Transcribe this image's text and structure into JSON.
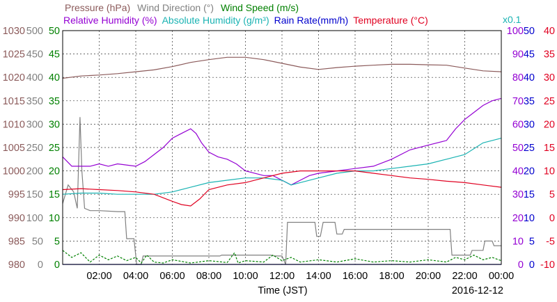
{
  "colors": {
    "pressure": "#8b5a5a",
    "wind_direction": "#808080",
    "wind_speed": "#008000",
    "relative_humidity": "#9400d3",
    "absolute_humidity": "#1ab3b3",
    "rain_rate": "#0000cd",
    "temperature": "#e00020"
  },
  "chart_data": {
    "type": "line",
    "title_row1": [
      {
        "key": "pressure",
        "text": "Pressure (hPa)"
      },
      {
        "key": "wind_direction",
        "text": "Wind Direction (°)"
      },
      {
        "key": "wind_speed",
        "text": "Wind Speed (m/s)"
      }
    ],
    "title_row2": [
      {
        "key": "relative_humidity",
        "text": "Relative Humidity (%)"
      },
      {
        "key": "absolute_humidity",
        "text": "Absolute Humidity (g/m³)"
      },
      {
        "key": "rain_rate",
        "text": "Rain Rate(mm/h)"
      },
      {
        "key": "temperature",
        "text": "Temperature (°C)"
      }
    ],
    "abs_humidity_scale_note": "x0.1",
    "xlabel": "Time (JST)",
    "date": "2016-12-12",
    "x_range_hours": [
      0,
      24
    ],
    "x_ticks": [
      "02:00",
      "04:00",
      "06:00",
      "08:00",
      "10:00",
      "12:00",
      "14:00",
      "16:00",
      "18:00",
      "20:00",
      "22:00",
      "00:00"
    ],
    "grid": true,
    "axes": {
      "pressure": {
        "range": [
          980,
          1030
        ],
        "ticks": [
          "1030",
          "1025",
          "1020",
          "1015",
          "1010",
          "1005",
          "1000",
          "995",
          "990",
          "985",
          "980"
        ]
      },
      "wind_direction": {
        "range": [
          0,
          500
        ],
        "ticks": [
          "500",
          "450",
          "400",
          "350",
          "300",
          "250",
          "200",
          "150",
          "100",
          "50",
          "0"
        ]
      },
      "wind_speed": {
        "range": [
          0,
          50
        ],
        "ticks": [
          "50",
          "45",
          "40",
          "35",
          "30",
          "25",
          "20",
          "15",
          "10",
          "5",
          "0"
        ]
      },
      "relative_humidity": {
        "range": [
          0,
          100
        ],
        "ticks": [
          "100",
          "90",
          "80",
          "70",
          "60",
          "50",
          "40",
          "30",
          "20",
          "10",
          "0"
        ]
      },
      "rain_rate": {
        "range": [
          0,
          50
        ],
        "ticks": [
          "50",
          "45",
          "40",
          "35",
          "30",
          "25",
          "20",
          "15",
          "10",
          "5",
          "0"
        ]
      },
      "temperature": {
        "range": [
          -10,
          40
        ],
        "ticks": [
          "40",
          "35",
          "30",
          "25",
          "20",
          "15",
          "10",
          "5",
          "0",
          "-5",
          "-10"
        ]
      }
    },
    "series": [
      {
        "key": "pressure",
        "axis": "pressure",
        "points": [
          [
            0,
            1019.8
          ],
          [
            1,
            1020.3
          ],
          [
            2,
            1020.5
          ],
          [
            3,
            1020.8
          ],
          [
            4,
            1021.2
          ],
          [
            5,
            1021.6
          ],
          [
            6,
            1022.3
          ],
          [
            7,
            1023.2
          ],
          [
            8,
            1023.8
          ],
          [
            9,
            1024.3
          ],
          [
            10,
            1024.3
          ],
          [
            11,
            1023.8
          ],
          [
            12,
            1023.0
          ],
          [
            13,
            1022.2
          ],
          [
            14,
            1021.7
          ],
          [
            15,
            1022.1
          ],
          [
            16,
            1022.4
          ],
          [
            17,
            1022.6
          ],
          [
            18,
            1022.8
          ],
          [
            19,
            1022.8
          ],
          [
            20,
            1022.7
          ],
          [
            21,
            1022.6
          ],
          [
            22,
            1022.0
          ],
          [
            23,
            1021.4
          ],
          [
            24,
            1021.2
          ]
        ]
      },
      {
        "key": "wind_direction",
        "axis": "wind_direction",
        "points": [
          [
            0,
            130
          ],
          [
            0.3,
            170
          ],
          [
            0.6,
            155
          ],
          [
            0.8,
            120
          ],
          [
            0.95,
            315
          ],
          [
            1.05,
            200
          ],
          [
            1.2,
            120
          ],
          [
            1.5,
            115
          ],
          [
            2,
            115
          ],
          [
            3,
            113
          ],
          [
            3.4,
            113
          ],
          [
            3.5,
            55
          ],
          [
            3.9,
            55
          ],
          [
            4.05,
            0
          ],
          [
            4.3,
            0
          ],
          [
            4.4,
            18
          ],
          [
            8.6,
            18
          ],
          [
            8.7,
            20
          ],
          [
            11.4,
            20
          ],
          [
            11.6,
            18
          ],
          [
            12,
            18
          ],
          [
            12.2,
            0
          ],
          [
            12.3,
            90
          ],
          [
            12.5,
            90
          ],
          [
            13.8,
            90
          ],
          [
            13.9,
            60
          ],
          [
            14.1,
            60
          ],
          [
            14.25,
            90
          ],
          [
            14.9,
            90
          ],
          [
            15,
            65
          ],
          [
            15.3,
            65
          ],
          [
            15.4,
            75
          ],
          [
            21.2,
            75
          ],
          [
            21.3,
            20
          ],
          [
            22.3,
            20
          ],
          [
            22.4,
            30
          ],
          [
            23,
            30
          ],
          [
            23.1,
            50
          ],
          [
            23.5,
            50
          ],
          [
            23.6,
            40
          ],
          [
            24,
            40
          ]
        ]
      },
      {
        "key": "wind_speed",
        "axis": "wind_speed",
        "points": [
          [
            0,
            3
          ],
          [
            0.5,
            1.5
          ],
          [
            1,
            2.5
          ],
          [
            1.5,
            0.5
          ],
          [
            2,
            2
          ],
          [
            2.5,
            1
          ],
          [
            3,
            1.8
          ],
          [
            3.5,
            0.8
          ],
          [
            4,
            1.5
          ],
          [
            4.3,
            0.3
          ],
          [
            4.6,
            2
          ],
          [
            5,
            0.5
          ],
          [
            5.5,
            0.3
          ],
          [
            6,
            1
          ],
          [
            7,
            0.3
          ],
          [
            8,
            0.8
          ],
          [
            9,
            0.4
          ],
          [
            9.4,
            2.5
          ],
          [
            9.6,
            0.3
          ],
          [
            10,
            0.8
          ],
          [
            11,
            0.5
          ],
          [
            11.5,
            2
          ],
          [
            12,
            0.8
          ],
          [
            12.5,
            1.5
          ],
          [
            13,
            0.5
          ],
          [
            14,
            1
          ],
          [
            15,
            0.5
          ],
          [
            16,
            1.2
          ],
          [
            17,
            0.5
          ],
          [
            18,
            0.8
          ],
          [
            19,
            0.5
          ],
          [
            20,
            1
          ],
          [
            21,
            0.5
          ],
          [
            21.5,
            1.5
          ],
          [
            22,
            1
          ],
          [
            22.5,
            2
          ],
          [
            23,
            1
          ],
          [
            23.5,
            1.5
          ],
          [
            24,
            0.8
          ]
        ]
      },
      {
        "key": "relative_humidity",
        "axis": "relative_humidity",
        "points": [
          [
            0,
            46
          ],
          [
            0.5,
            42
          ],
          [
            1,
            42
          ],
          [
            1.5,
            42
          ],
          [
            2,
            43
          ],
          [
            2.5,
            42
          ],
          [
            3,
            43
          ],
          [
            4,
            42
          ],
          [
            4.5,
            44
          ],
          [
            5,
            47
          ],
          [
            5.5,
            50
          ],
          [
            6,
            54
          ],
          [
            6.5,
            56
          ],
          [
            7,
            58
          ],
          [
            7.3,
            56
          ],
          [
            7.6,
            52
          ],
          [
            8,
            48
          ],
          [
            8.5,
            46
          ],
          [
            9,
            45
          ],
          [
            9.5,
            43
          ],
          [
            10,
            40
          ],
          [
            11,
            38
          ],
          [
            11.5,
            38
          ],
          [
            12,
            36
          ],
          [
            12.5,
            34
          ],
          [
            13,
            36
          ],
          [
            13.5,
            38
          ],
          [
            14,
            39
          ],
          [
            15,
            40
          ],
          [
            16,
            41
          ],
          [
            17,
            42
          ],
          [
            18,
            45
          ],
          [
            19,
            49
          ],
          [
            20,
            51
          ],
          [
            21,
            53
          ],
          [
            21.5,
            58
          ],
          [
            22,
            62
          ],
          [
            22.5,
            65
          ],
          [
            23,
            68
          ],
          [
            23.5,
            70
          ],
          [
            24,
            71
          ]
        ]
      },
      {
        "key": "absolute_humidity",
        "axis": "relative_humidity",
        "points": [
          [
            0,
            30
          ],
          [
            1,
            30.5
          ],
          [
            2,
            30.5
          ],
          [
            3,
            30
          ],
          [
            4,
            30
          ],
          [
            5,
            30
          ],
          [
            6,
            31
          ],
          [
            7,
            33
          ],
          [
            8,
            35
          ],
          [
            9,
            36
          ],
          [
            10,
            37
          ],
          [
            11,
            37
          ],
          [
            12,
            36
          ],
          [
            12.5,
            34
          ],
          [
            13,
            35
          ],
          [
            14,
            37
          ],
          [
            15,
            39
          ],
          [
            16,
            40
          ],
          [
            17,
            40
          ],
          [
            18,
            41
          ],
          [
            19,
            42
          ],
          [
            20,
            43
          ],
          [
            21,
            45
          ],
          [
            22,
            47
          ],
          [
            23,
            52
          ],
          [
            24,
            54
          ]
        ]
      },
      {
        "key": "rain_rate",
        "axis": "rain_rate",
        "points": [
          [
            0,
            0
          ],
          [
            24,
            0
          ]
        ]
      },
      {
        "key": "temperature",
        "axis": "temperature",
        "points": [
          [
            0,
            6
          ],
          [
            1,
            6.2
          ],
          [
            2,
            6
          ],
          [
            3,
            5.8
          ],
          [
            4,
            5.5
          ],
          [
            5,
            5
          ],
          [
            6,
            3.5
          ],
          [
            6.5,
            2.8
          ],
          [
            7,
            2.5
          ],
          [
            7.5,
            4
          ],
          [
            8,
            6
          ],
          [
            9,
            7
          ],
          [
            10,
            7.5
          ],
          [
            11,
            8.5
          ],
          [
            12,
            9.5
          ],
          [
            13,
            10
          ],
          [
            14,
            10
          ],
          [
            15,
            10
          ],
          [
            16,
            10
          ],
          [
            17,
            9.5
          ],
          [
            18,
            9
          ],
          [
            19,
            8.5
          ],
          [
            20,
            8.2
          ],
          [
            21,
            7.8
          ],
          [
            22,
            7.5
          ],
          [
            23,
            7
          ],
          [
            24,
            6.5
          ]
        ]
      }
    ]
  }
}
